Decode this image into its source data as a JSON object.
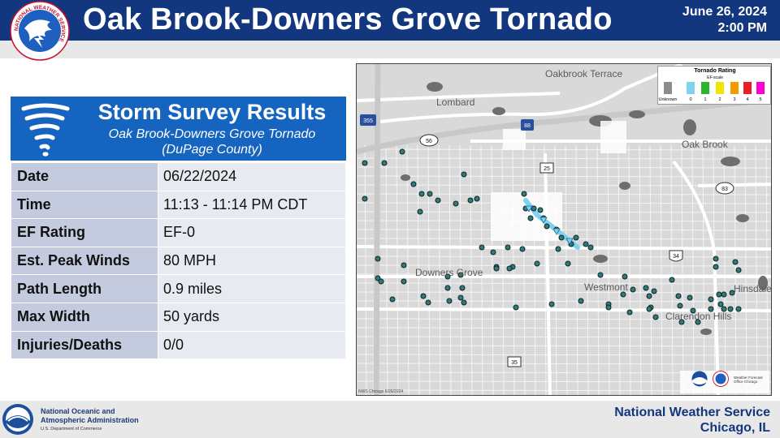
{
  "header": {
    "title": "Oak Brook-Downers Grove Tornado",
    "date": "June 26, 2024",
    "time": "2:00 PM",
    "logo_text": "NATIONAL WEATHER SERVICE"
  },
  "survey": {
    "heading": "Storm Survey Results",
    "subtitle_line1": "Oak Brook-Downers Grove Tornado",
    "subtitle_line2": "(DuPage County)",
    "rows": [
      {
        "label": "Date",
        "value": "06/22/2024"
      },
      {
        "label": "Time",
        "value": "11:13 - 11:14 PM CDT"
      },
      {
        "label": "EF Rating",
        "value": "EF-0"
      },
      {
        "label": "Est. Peak Winds",
        "value": "80 MPH"
      },
      {
        "label": "Path Length",
        "value": "0.9 miles"
      },
      {
        "label": "Max Width",
        "value": "50 yards"
      },
      {
        "label": "Injuries/Deaths",
        "value": "0/0"
      }
    ]
  },
  "map": {
    "places": [
      "Oakbrook Terrace",
      "Lombard",
      "Oak Brook",
      "Downers Grove",
      "Westmont",
      "Hinsdale",
      "Clarendon Hills"
    ],
    "routes": [
      "355",
      "88",
      "56",
      "25",
      "83",
      "34",
      "35"
    ],
    "credit": "NWS Chicago 6/26/2024",
    "legend": {
      "title": "Tornado Rating",
      "subtitle": "EF-scale",
      "items": [
        {
          "label": "Unknown",
          "color": "#8c8c8c"
        },
        {
          "label": "0",
          "color": "#7fd3f0"
        },
        {
          "label": "1",
          "color": "#2db52d"
        },
        {
          "label": "2",
          "color": "#f2e600"
        },
        {
          "label": "3",
          "color": "#f59a00"
        },
        {
          "label": "4",
          "color": "#ee1c24"
        },
        {
          "label": "5",
          "color": "#ff00d0"
        }
      ]
    },
    "logo_text": "Weather Forecast Office Chicago"
  },
  "footer": {
    "noaa_line1": "National Oceanic and",
    "noaa_line2": "Atmospheric Administration",
    "noaa_dept": "U.S. Department of Commerce",
    "nws_line1": "National Weather Service",
    "nws_line2": "Chicago, IL"
  },
  "colors": {
    "header_bg": "#12377f",
    "card_header": "#1565c0",
    "label_cell": "#c4cbdf",
    "value_cell": "#e7eaf1",
    "track": "#7fd3f0"
  }
}
